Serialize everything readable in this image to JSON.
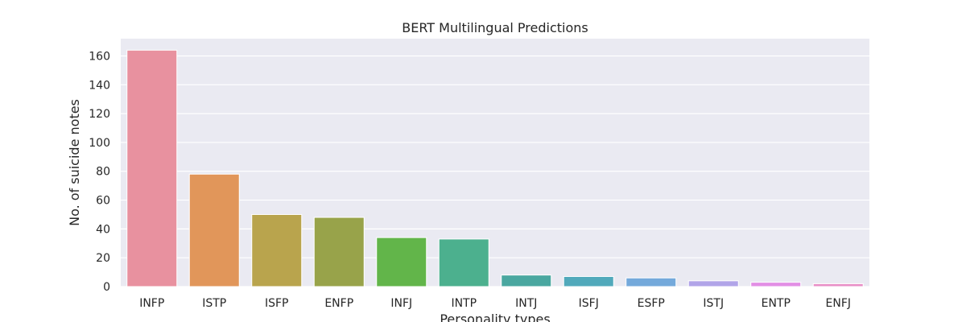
{
  "chart_data": {
    "type": "bar",
    "title": "BERT Multilingual Predictions",
    "xlabel": "Personality types",
    "ylabel": "No. of suicide notes",
    "categories": [
      "INFP",
      "ISTP",
      "ISFP",
      "ENFP",
      "INFJ",
      "INTP",
      "INTJ",
      "ISFJ",
      "ESFP",
      "ISTJ",
      "ENTP",
      "ENFJ"
    ],
    "values": [
      164,
      78,
      50,
      48,
      34,
      33,
      8,
      7,
      6,
      4,
      3,
      2
    ],
    "ylim": [
      0,
      172
    ],
    "yticks": [
      0,
      20,
      40,
      60,
      80,
      100,
      120,
      140,
      160
    ],
    "grid": true,
    "colors": [
      "#e8919f",
      "#e1965a",
      "#b9a44d",
      "#98a34a",
      "#62b54a",
      "#4cb08e",
      "#4aa7a0",
      "#51a9bb",
      "#74a9db",
      "#b1a4e8",
      "#e28ee5",
      "#e88fc7"
    ]
  }
}
